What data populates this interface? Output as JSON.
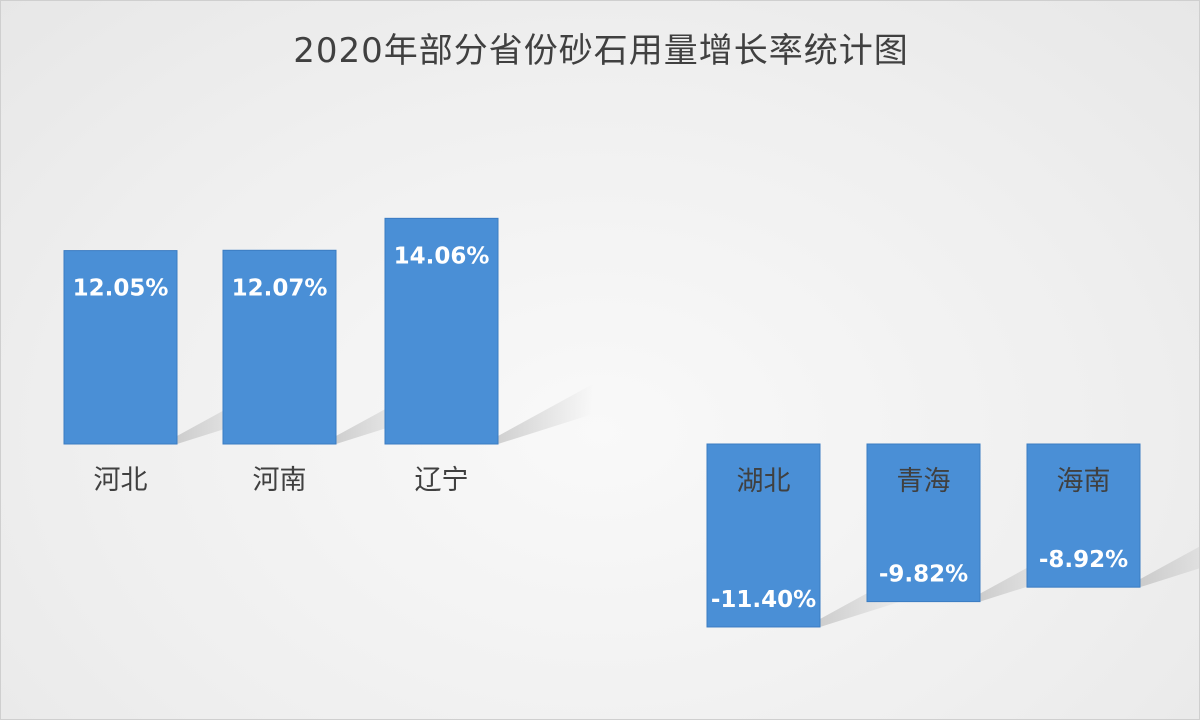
{
  "chart_data": {
    "type": "bar",
    "title": "2020年部分省份砂石用量增长率统计图",
    "xlabel": "",
    "ylabel": "",
    "categories": [
      "河北",
      "河南",
      "辽宁",
      "湖北",
      "青海",
      "海南"
    ],
    "values": [
      12.05,
      12.07,
      14.06,
      -11.4,
      -9.82,
      -8.92
    ],
    "data_labels": [
      "12.05%",
      "12.07%",
      "14.06%",
      "-11.40%",
      "-9.82%",
      "-8.92%"
    ],
    "unit": "%",
    "grid": false,
    "legend": "none",
    "colors": {
      "bar": "#4a8fd6",
      "bar_edge": "#3b7cc2",
      "label_inside": "#ffffff",
      "category_text": "#404040",
      "shadow": "#b9b9b9"
    }
  }
}
